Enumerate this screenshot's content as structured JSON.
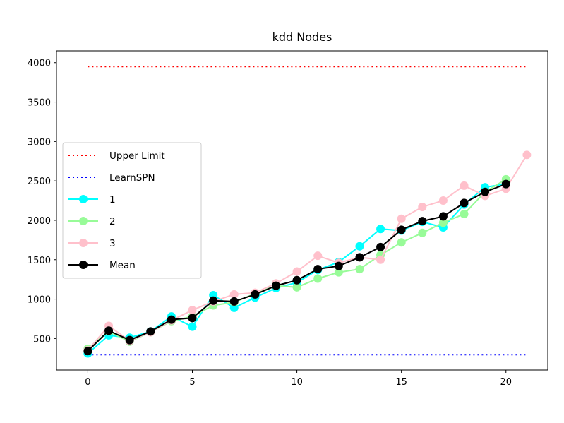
{
  "chart_data": {
    "type": "line",
    "title": "kdd Nodes",
    "xlabel": "",
    "ylabel": "",
    "xlim": [
      -1.5,
      22
    ],
    "ylim": [
      100,
      4150
    ],
    "xticks": [
      0,
      5,
      10,
      15,
      20
    ],
    "yticks": [
      500,
      1000,
      1500,
      2000,
      2500,
      3000,
      3500,
      4000
    ],
    "grid": false,
    "legend_position": "center-left",
    "series": [
      {
        "name": "Upper Limit",
        "color": "#ff0000",
        "style": "dotted",
        "marker": false,
        "x": [
          0,
          21
        ],
        "values": [
          3950,
          3950
        ]
      },
      {
        "name": "LearnSPN",
        "color": "#0000ff",
        "style": "dotted",
        "marker": false,
        "x": [
          0,
          21
        ],
        "values": [
          295,
          295
        ]
      },
      {
        "name": "1",
        "color": "#00ffff",
        "style": "solid",
        "marker": true,
        "x": [
          0,
          1,
          2,
          3,
          4,
          5,
          6,
          7,
          8,
          9,
          10,
          11,
          12,
          13,
          14,
          15,
          16,
          17,
          18,
          19,
          20
        ],
        "values": [
          310,
          540,
          510,
          590,
          780,
          650,
          1050,
          890,
          1020,
          1140,
          1210,
          1370,
          1470,
          1670,
          1890,
          1870,
          1980,
          1910,
          2200,
          2420,
          2460
        ]
      },
      {
        "name": "2",
        "color": "#98fb98",
        "style": "solid",
        "marker": true,
        "x": [
          0,
          1,
          2,
          3,
          4,
          5,
          6,
          7,
          8,
          9,
          10,
          11,
          12,
          13,
          14,
          15,
          16,
          17,
          18,
          19,
          20
        ],
        "values": [
          370,
          590,
          460,
          580,
          720,
          780,
          920,
          960,
          1070,
          1170,
          1150,
          1260,
          1340,
          1380,
          1560,
          1720,
          1840,
          1970,
          2080,
          2360,
          2520
        ]
      },
      {
        "name": "3",
        "color": "#ffc0cb",
        "style": "solid",
        "marker": true,
        "x": [
          0,
          1,
          2,
          3,
          4,
          5,
          6,
          7,
          8,
          9,
          10,
          11,
          12,
          13,
          14,
          15,
          16,
          17,
          18,
          19,
          20,
          21
        ],
        "values": [
          350,
          660,
          470,
          580,
          730,
          860,
          970,
          1060,
          1080,
          1200,
          1350,
          1550,
          1460,
          1530,
          1500,
          2020,
          2170,
          2250,
          2440,
          2310,
          2400,
          2830
        ]
      },
      {
        "name": "Mean",
        "color": "#000000",
        "style": "solid",
        "marker": true,
        "x": [
          0,
          1,
          2,
          3,
          4,
          5,
          6,
          7,
          8,
          9,
          10,
          11,
          12,
          13,
          14,
          15,
          16,
          17,
          18,
          19,
          20
        ],
        "values": [
          340,
          600,
          480,
          590,
          740,
          760,
          980,
          970,
          1060,
          1170,
          1240,
          1380,
          1420,
          1530,
          1660,
          1880,
          1990,
          2050,
          2220,
          2360,
          2460
        ]
      }
    ]
  }
}
